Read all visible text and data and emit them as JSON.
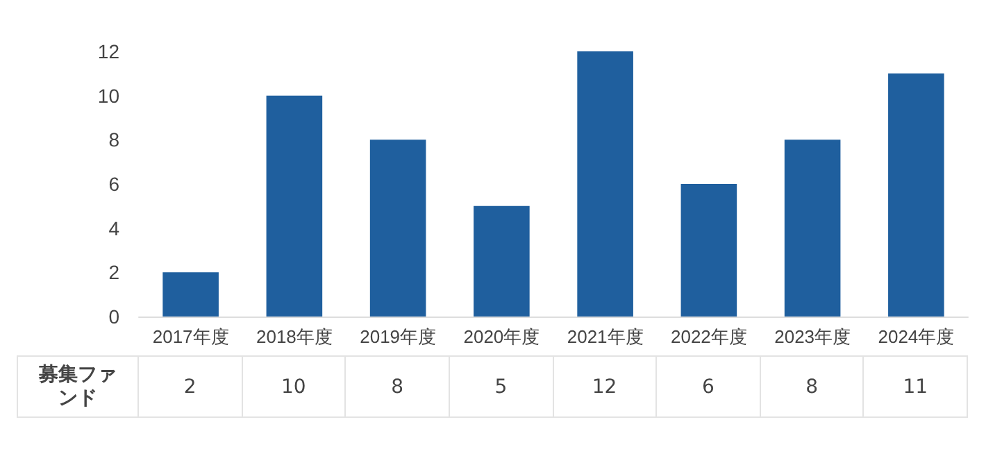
{
  "chart_data": {
    "type": "bar",
    "categories": [
      "2017年度",
      "2018年度",
      "2019年度",
      "2020年度",
      "2021年度",
      "2022年度",
      "2023年度",
      "2024年度"
    ],
    "series": [
      {
        "name": "募集ファンド",
        "color": "#1f5f9e",
        "values": [
          2,
          10,
          8,
          5,
          12,
          6,
          8,
          11
        ]
      }
    ],
    "ylim": [
      0,
      12
    ],
    "yticks": [
      0,
      2,
      4,
      6,
      8,
      10,
      12
    ],
    "grid": false,
    "legend": false,
    "data_labels": true
  }
}
